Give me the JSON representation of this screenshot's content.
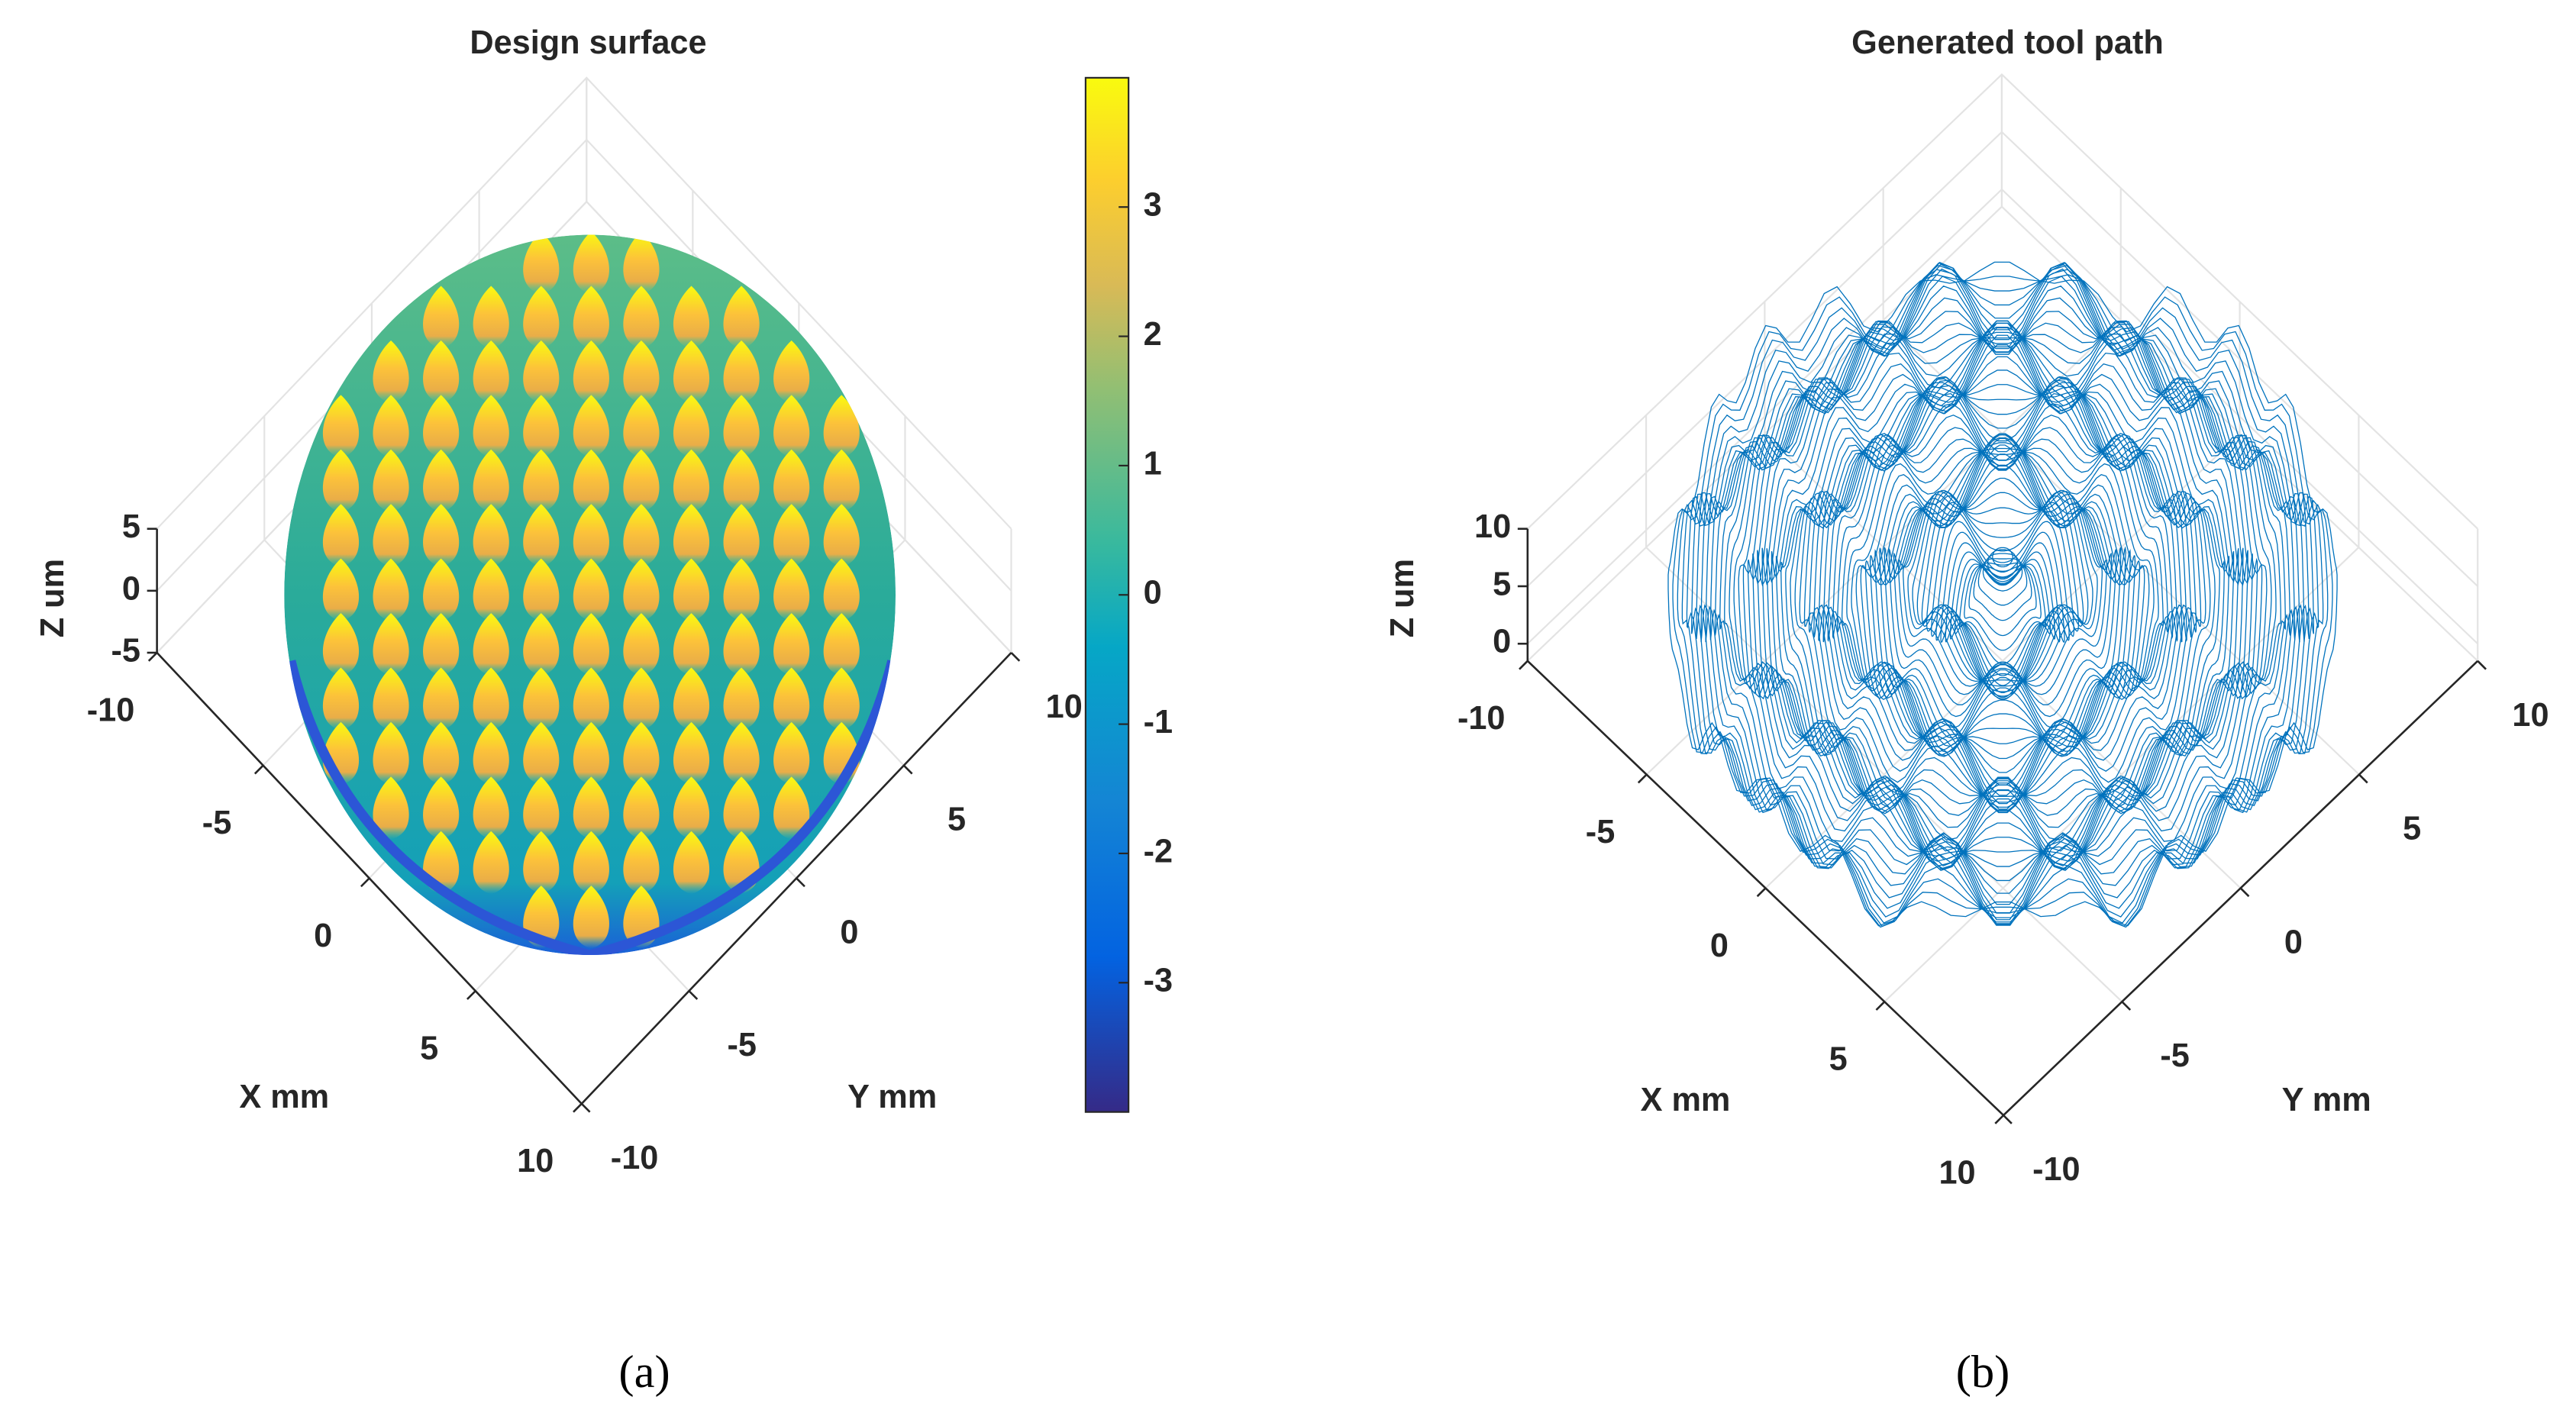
{
  "chart_data": [
    {
      "type": "surface",
      "title": "Design surface",
      "xlabel": "X mm",
      "ylabel": "Y mm",
      "zlabel": "Z um",
      "xlim": [
        -10,
        10
      ],
      "xticks": [
        -10,
        -5,
        0,
        5,
        10
      ],
      "ylim": [
        -10,
        10
      ],
      "yticks": [
        -10,
        -5,
        0,
        5,
        10
      ],
      "zlim": [
        -5,
        5
      ],
      "zticks": [
        -5,
        0,
        5
      ],
      "colorbar": {
        "lim": [
          -4,
          4
        ],
        "ticks": [
          -3,
          -2,
          -1,
          0,
          1,
          2,
          3
        ]
      },
      "colormap": "parula",
      "grid": true,
      "caption": "(a)"
    },
    {
      "type": "path3d",
      "title": "Generated tool path",
      "xlabel": "X mm",
      "ylabel": "Y mm",
      "zlabel": "Z um",
      "xlim": [
        -10,
        10
      ],
      "xticks": [
        -10,
        -5,
        0,
        5,
        10
      ],
      "ylim": [
        -10,
        10
      ],
      "yticks": [
        -10,
        -5,
        0,
        5,
        10
      ],
      "zlim": [
        -1.5,
        10
      ],
      "zticks": [
        0,
        5,
        10
      ],
      "color": "#0072bd",
      "grid": true,
      "caption": "(b)"
    }
  ]
}
